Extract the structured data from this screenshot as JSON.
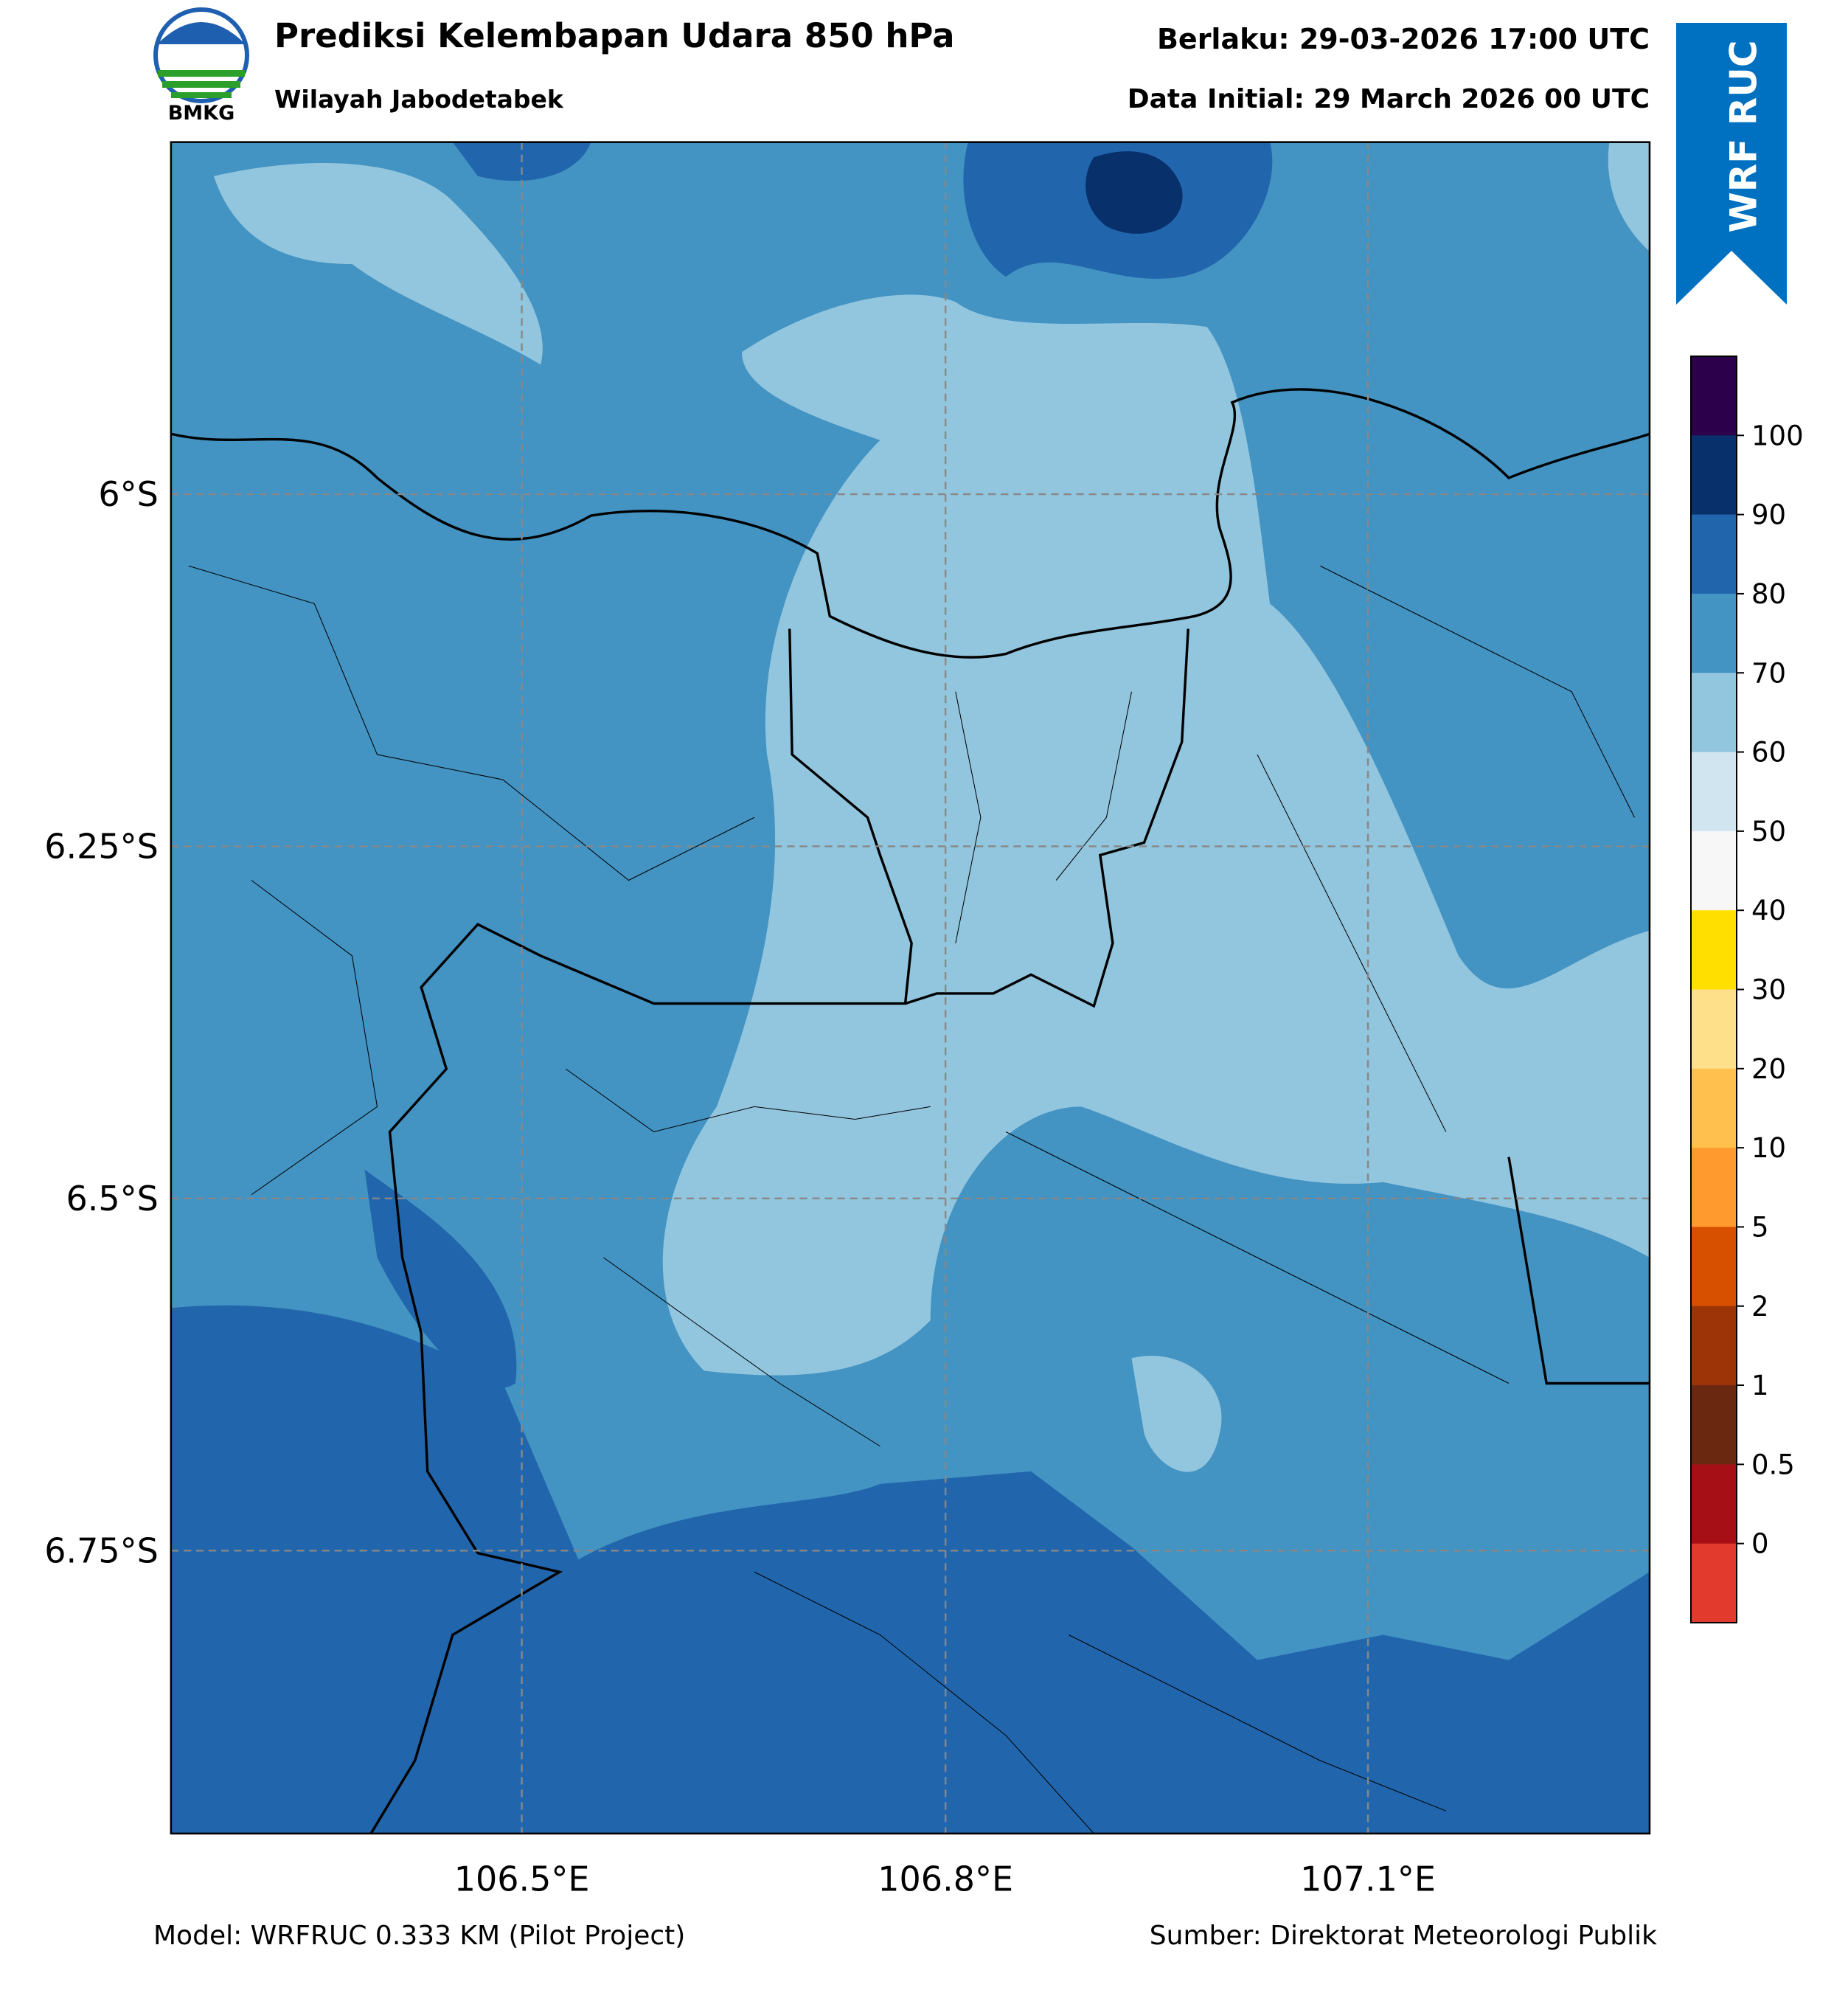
{
  "header": {
    "logo_text": "BMKG",
    "title": "Prediksi Kelembapan Udara 850 hPa",
    "subtitle": "Wilayah Jabodetabek",
    "valid": "Berlaku: 29-03-2026 17:00 UTC",
    "initial": "Data Initial: 29 March 2026 00 UTC",
    "badge": "WRF RUC"
  },
  "axes": {
    "lat_labels": [
      "6°S",
      "6.25°S",
      "6.5°S",
      "6.75°S"
    ],
    "lon_labels": [
      "106.5°E",
      "106.8°E",
      "107.1°E"
    ]
  },
  "colorbar": {
    "colors": [
      "#2d004b",
      "#08306b",
      "#2166ac",
      "#4393c3",
      "#92c5de",
      "#d1e5f0",
      "#f7f7f7",
      "#ffdf00",
      "#ffe08a",
      "#ffc04e",
      "#ff9a2e",
      "#d65000",
      "#9c3408",
      "#6b2810",
      "#a50f15",
      "#e23b2e"
    ],
    "tick_labels": [
      "100",
      "90",
      "80",
      "70",
      "60",
      "50",
      "40",
      "30",
      "20",
      "10",
      "5",
      "2",
      "1",
      "0.5",
      "0"
    ]
  },
  "footer": {
    "model": "Model: WRFRUC 0.333 KM (Pilot Project)",
    "source": "Sumber: Direktorat Meteorologi Publik"
  }
}
